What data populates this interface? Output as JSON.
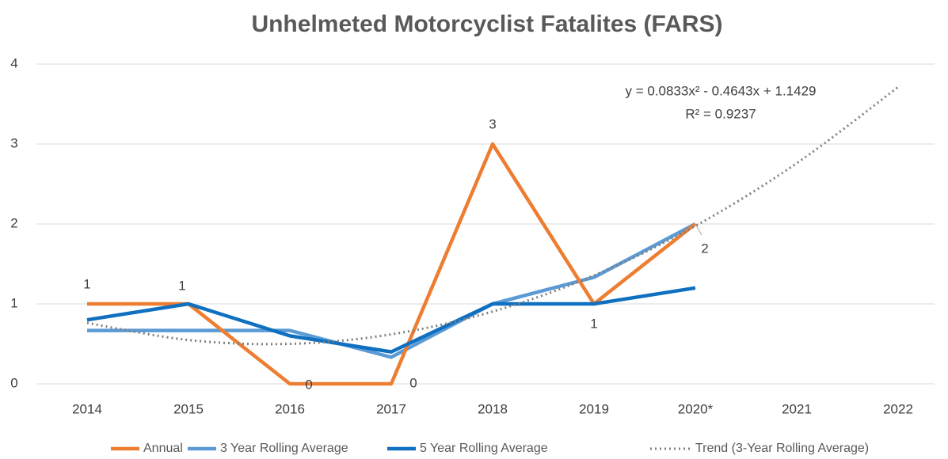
{
  "chart_data": {
    "type": "line",
    "title": "Unhelmeted Motorcyclist Fatalites (FARS)",
    "categories": [
      "2014",
      "2015",
      "2016",
      "2017",
      "2018",
      "2019",
      "2020*",
      "2021",
      "2022"
    ],
    "series": [
      {
        "name": "Annual",
        "color": "#ed7d31",
        "values": [
          1,
          1,
          0,
          0,
          3,
          1,
          2,
          null,
          null
        ]
      },
      {
        "name": "3 Year Rolling Average",
        "color": "#5b9bd5",
        "values": [
          0.667,
          0.667,
          0.667,
          0.333,
          1,
          1.333,
          2,
          null,
          null
        ]
      },
      {
        "name": "5 Year Rolling Average",
        "color": "#0f6fc0",
        "values": [
          0.8,
          1,
          0.6,
          0.4,
          1,
          1,
          1.2,
          null,
          null
        ]
      },
      {
        "name": "Trend (3-Year Rolling Average)",
        "color": "#7f7f7f",
        "dotted": true,
        "values": [
          0.762,
          0.548,
          0.5,
          0.619,
          0.904,
          1.356,
          1.975,
          2.76,
          3.712
        ]
      }
    ],
    "annotations": [
      "y = 0.0833x² - 0.4643x + 1.1429",
      "R² = 0.9237"
    ],
    "ylim": [
      0,
      4
    ],
    "yticks": [
      0,
      1,
      2,
      3,
      4
    ],
    "grid": true,
    "legend": "bottom"
  }
}
